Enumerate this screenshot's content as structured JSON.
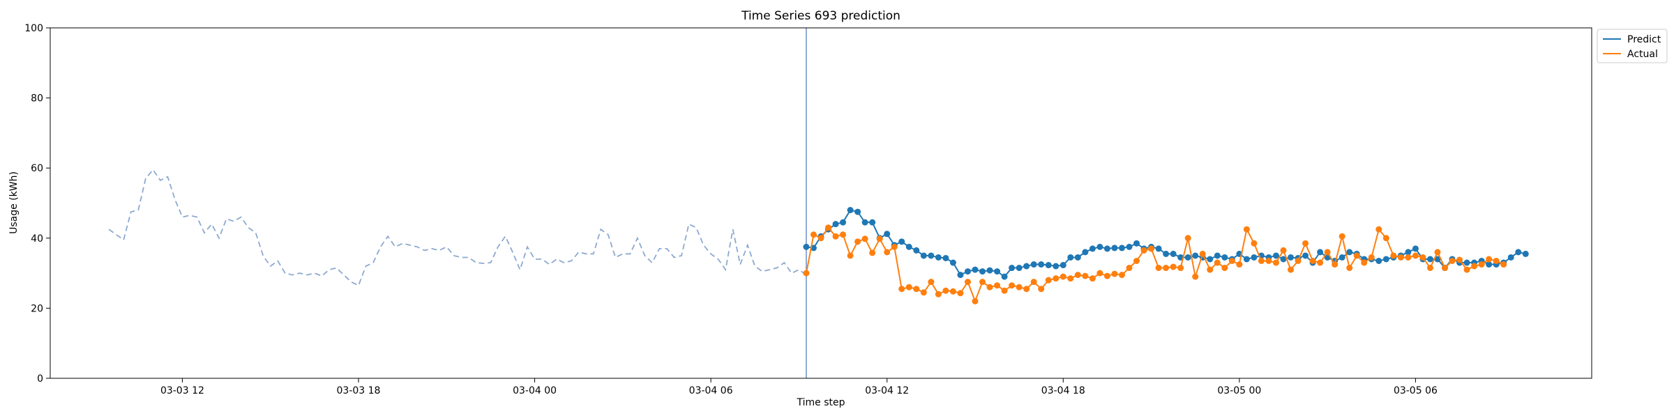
{
  "chart_data": {
    "type": "line",
    "title": "Time Series 693 prediction",
    "xlabel": "Time step",
    "ylabel": "Usage (kWh)",
    "ylim": [
      0,
      100
    ],
    "yticks": [
      0,
      20,
      40,
      60,
      80,
      100
    ],
    "xlim": [
      "2024-03-03 07:30",
      "2024-03-05 12:00"
    ],
    "xticks": [
      {
        "t": "2024-03-03 12:00",
        "label": "03-03 12"
      },
      {
        "t": "2024-03-03 18:00",
        "label": "03-03 18"
      },
      {
        "t": "2024-03-04 00:00",
        "label": "03-04 00"
      },
      {
        "t": "2024-03-04 06:00",
        "label": "03-04 06"
      },
      {
        "t": "2024-03-04 12:00",
        "label": "03-04 12"
      },
      {
        "t": "2024-03-04 18:00",
        "label": "03-04 18"
      },
      {
        "t": "2024-03-05 00:00",
        "label": "03-05 00"
      },
      {
        "t": "2024-03-05 06:00",
        "label": "03-05 06"
      }
    ],
    "grid": false,
    "legend_position": "outside top-right",
    "forecast_start": "2024-03-04 09:15",
    "history": {
      "style": "dashed",
      "color": "#8ca9cf",
      "start": "2024-03-03 09:30",
      "step_minutes": 15,
      "values": [
        42.5,
        41,
        39.5,
        47.5,
        48,
        57,
        59.5,
        56.5,
        57.5,
        51,
        46,
        46.5,
        46,
        41.5,
        44,
        40,
        45.5,
        44.8,
        46,
        43,
        41.5,
        35,
        32,
        33.5,
        30,
        29.5,
        30,
        29.5,
        30,
        29.2,
        31,
        31.5,
        29.5,
        27.5,
        26.5,
        32,
        33,
        37.5,
        40.5,
        37.5,
        38.5,
        38,
        37.5,
        36.5,
        37,
        36.5,
        37.5,
        35,
        34.5,
        34.5,
        33,
        32.8,
        33,
        37.5,
        40.5,
        36,
        31,
        37.5,
        34,
        34,
        32.5,
        34,
        33,
        33.5,
        36,
        35.5,
        35.5,
        42.5,
        41,
        34.5,
        35.5,
        35.5,
        40,
        35,
        33,
        37,
        37,
        34.5,
        35,
        44,
        43,
        38,
        35.5,
        34,
        31,
        42.5,
        32.5,
        38,
        32,
        30.5,
        31,
        31.5,
        33,
        30,
        31,
        29.5
      ]
    },
    "series": [
      {
        "name": "Predict",
        "color": "#1f77b4",
        "start": "2024-03-04 09:15",
        "step_minutes": 15,
        "values": [
          37.5,
          37.2,
          40.5,
          42.5,
          44,
          44.5,
          48,
          47.5,
          44.5,
          44.5,
          40,
          41.2,
          38,
          39,
          37.5,
          36.5,
          35,
          35,
          34.5,
          34.3,
          33,
          29.5,
          30.5,
          31,
          30.5,
          30.8,
          30.5,
          29,
          31.5,
          31.5,
          32,
          32.5,
          32.5,
          32.3,
          32,
          32.3,
          34.5,
          34.5,
          36,
          37,
          37.5,
          37,
          37.2,
          37.2,
          37.5,
          38.5,
          37,
          37.5,
          37,
          35.5,
          35.5,
          34.5,
          34.5,
          35,
          34.5,
          34,
          35,
          34.5,
          34,
          35.5,
          34,
          34.5,
          35,
          34.5,
          35,
          34,
          34.5,
          34.3,
          35,
          33,
          36,
          34.5,
          33.5,
          34.5,
          36,
          35.5,
          34,
          34,
          33.5,
          34,
          34.5,
          35,
          36,
          37,
          34,
          34,
          34,
          31.5,
          34,
          33,
          33,
          33,
          33.5,
          32.5,
          32.5,
          33,
          34.5,
          36,
          35.5
        ]
      },
      {
        "name": "Actual",
        "color": "#ff7f0e",
        "start": "2024-03-04 09:15",
        "step_minutes": 15,
        "values": [
          30,
          41,
          40,
          43,
          40.5,
          41,
          35,
          39,
          39.8,
          35.8,
          39.8,
          36,
          37.5,
          25.5,
          26,
          25.5,
          24.5,
          27.5,
          24,
          25,
          24.8,
          24.3,
          27.5,
          22,
          27.5,
          26,
          26.5,
          25,
          26.5,
          26,
          25.5,
          27.5,
          25.5,
          28,
          28.5,
          29,
          28.5,
          29.5,
          29.2,
          28.5,
          30,
          29.2,
          29.8,
          29.5,
          31.5,
          33.5,
          36.5,
          37,
          31.5,
          31.5,
          31.8,
          31.5,
          40,
          29,
          35.5,
          31,
          33,
          31.5,
          33.5,
          32.5,
          42.5,
          38.5,
          33.5,
          33.5,
          33,
          36.5,
          31,
          33.5,
          38.5,
          33.5,
          33,
          36,
          32.5,
          40.5,
          31.5,
          35,
          33,
          34.5,
          42.5,
          40,
          35,
          34.5,
          34.5,
          35,
          34.5,
          31.5,
          36,
          31.5,
          33.5,
          33.8,
          31,
          32,
          32.5,
          34,
          33.5,
          32.5
        ]
      }
    ]
  }
}
